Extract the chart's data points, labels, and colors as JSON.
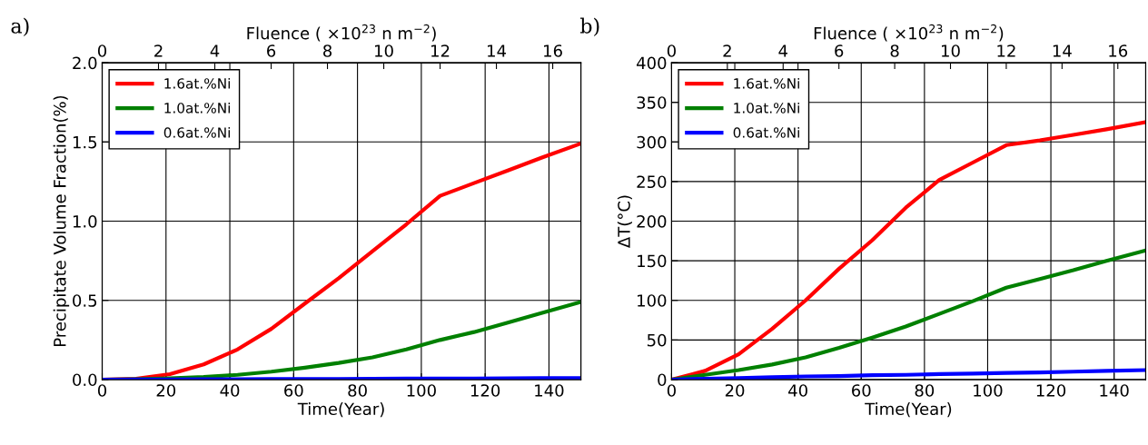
{
  "chart_data": [
    {
      "type": "line",
      "xlabel": "Time(Year)",
      "ylabel": "Precipitate Volume Fraction(%)",
      "x2label": "Fluence ( ×10$^{23}$ n m$^{−2}$)",
      "annotations": [
        "a)"
      ],
      "x": [
        0,
        10.6,
        21.2,
        31.8,
        42.4,
        53,
        63.5,
        74.1,
        84.7,
        95.3,
        105.9,
        116.5,
        127.1,
        137.6,
        150
      ],
      "xlim": [
        0,
        150
      ],
      "xticks": [
        0,
        20,
        40,
        60,
        80,
        100,
        120,
        140
      ],
      "x2lim": [
        0,
        17
      ],
      "x2ticks": [
        0,
        2,
        4,
        6,
        8,
        10,
        12,
        14,
        16
      ],
      "ylim": [
        0,
        2.0
      ],
      "yticks": [
        {
          "value": 0,
          "label": "0.0"
        },
        0.5,
        {
          "value": 1,
          "label": "1.0"
        },
        1.5,
        {
          "value": 2,
          "label": "2.0"
        }
      ],
      "grid": true,
      "legend": "top left",
      "line_style": "solid",
      "marker": "none",
      "series": [
        {
          "name": "1.6at.%Ni",
          "color": "#ff0000",
          "values": [
            0,
            0.005,
            0.034,
            0.096,
            0.19,
            0.32,
            0.48,
            0.64,
            0.81,
            0.98,
            1.16,
            1.24,
            1.32,
            1.4,
            1.49
          ]
        },
        {
          "name": "1.0at.%Ni",
          "color": "#008000",
          "values": [
            0,
            0.002,
            0.008,
            0.016,
            0.03,
            0.05,
            0.075,
            0.105,
            0.14,
            0.19,
            0.25,
            0.3,
            0.36,
            0.42,
            0.49
          ]
        },
        {
          "name": "0.6at.%Ni",
          "color": "#0000ff",
          "values": [
            0,
            0.0005,
            0.001,
            0.002,
            0.002,
            0.003,
            0.004,
            0.004,
            0.005,
            0.006,
            0.006,
            0.007,
            0.008,
            0.009,
            0.01
          ]
        }
      ]
    },
    {
      "type": "line",
      "xlabel": "Time(Year)",
      "ylabel": "ΔT(°C)",
      "x2label": "Fluence ( ×10$^{23}$ n m$^{−2}$)",
      "annotations": [
        "b)"
      ],
      "x": [
        0,
        10.6,
        21.2,
        31.8,
        42.4,
        53,
        63.5,
        74.1,
        84.7,
        95.3,
        105.9,
        116.5,
        127.1,
        137.6,
        150
      ],
      "xlim": [
        0,
        150
      ],
      "xticks": [
        0,
        20,
        40,
        60,
        80,
        100,
        120,
        140
      ],
      "x2lim": [
        0,
        17
      ],
      "x2ticks": [
        0,
        2,
        4,
        6,
        8,
        10,
        12,
        14,
        16
      ],
      "ylim": [
        0,
        400
      ],
      "yticks": [
        0,
        50,
        100,
        150,
        200,
        250,
        300,
        350,
        400
      ],
      "grid": true,
      "legend": "top left",
      "line_style": "solid",
      "marker": "none",
      "series": [
        {
          "name": "1.6at.%Ni",
          "color": "#ff0000",
          "values": [
            0,
            11,
            32,
            64,
            100,
            140,
            176,
            217,
            252,
            274,
            296,
            302,
            309,
            316,
            325
          ]
        },
        {
          "name": "1.0at.%Ni",
          "color": "#008000",
          "values": [
            0,
            6,
            12,
            19,
            28,
            40,
            53,
            67,
            83,
            99,
            116,
            127,
            138,
            150,
            163
          ]
        },
        {
          "name": "0.6at.%Ni",
          "color": "#0000ff",
          "values": [
            0,
            1,
            2,
            3,
            4,
            4.5,
            5.5,
            6,
            7,
            7.5,
            8.5,
            9,
            10,
            11,
            12
          ]
        }
      ]
    }
  ]
}
